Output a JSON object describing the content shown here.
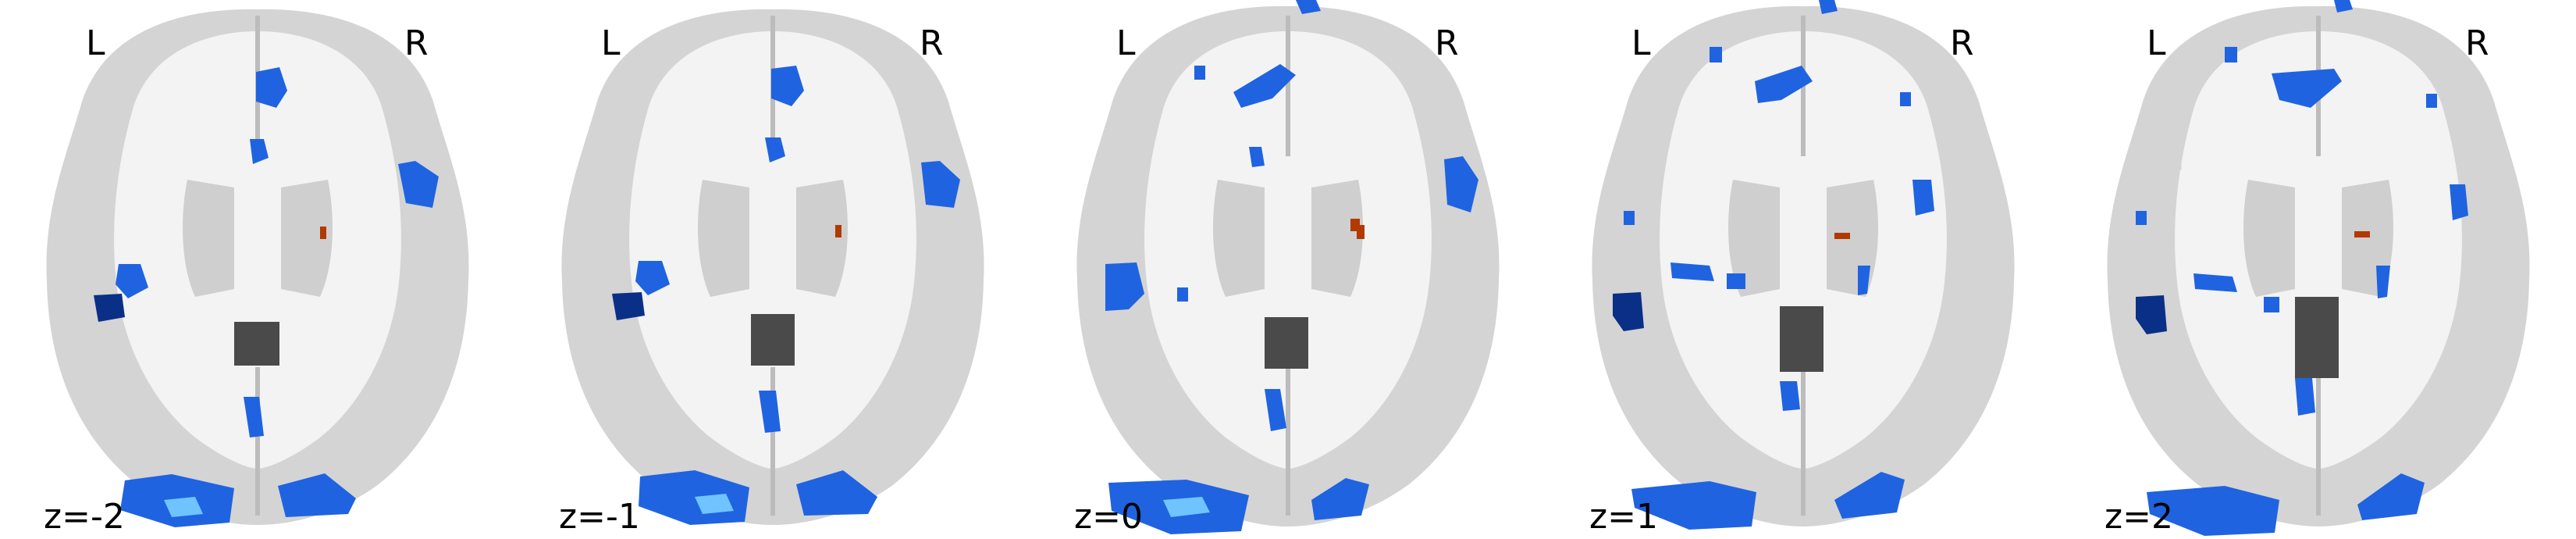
{
  "orientation": {
    "left": "L",
    "right": "R"
  },
  "slices": [
    {
      "z_label": "z=-2"
    },
    {
      "z_label": "z=-1"
    },
    {
      "z_label": "z=0"
    },
    {
      "z_label": "z=1"
    },
    {
      "z_label": "z=2"
    }
  ],
  "colors": {
    "background": "#ffffff",
    "brain_base": "#d6d6d6",
    "white_matter": "#f4f4f4",
    "ventricle": "#4a4a4a",
    "negative_dark": "#0a2f86",
    "negative_mid": "#1f63e0",
    "negative_light": "#6fc3ff",
    "positive": "#b03a00"
  }
}
